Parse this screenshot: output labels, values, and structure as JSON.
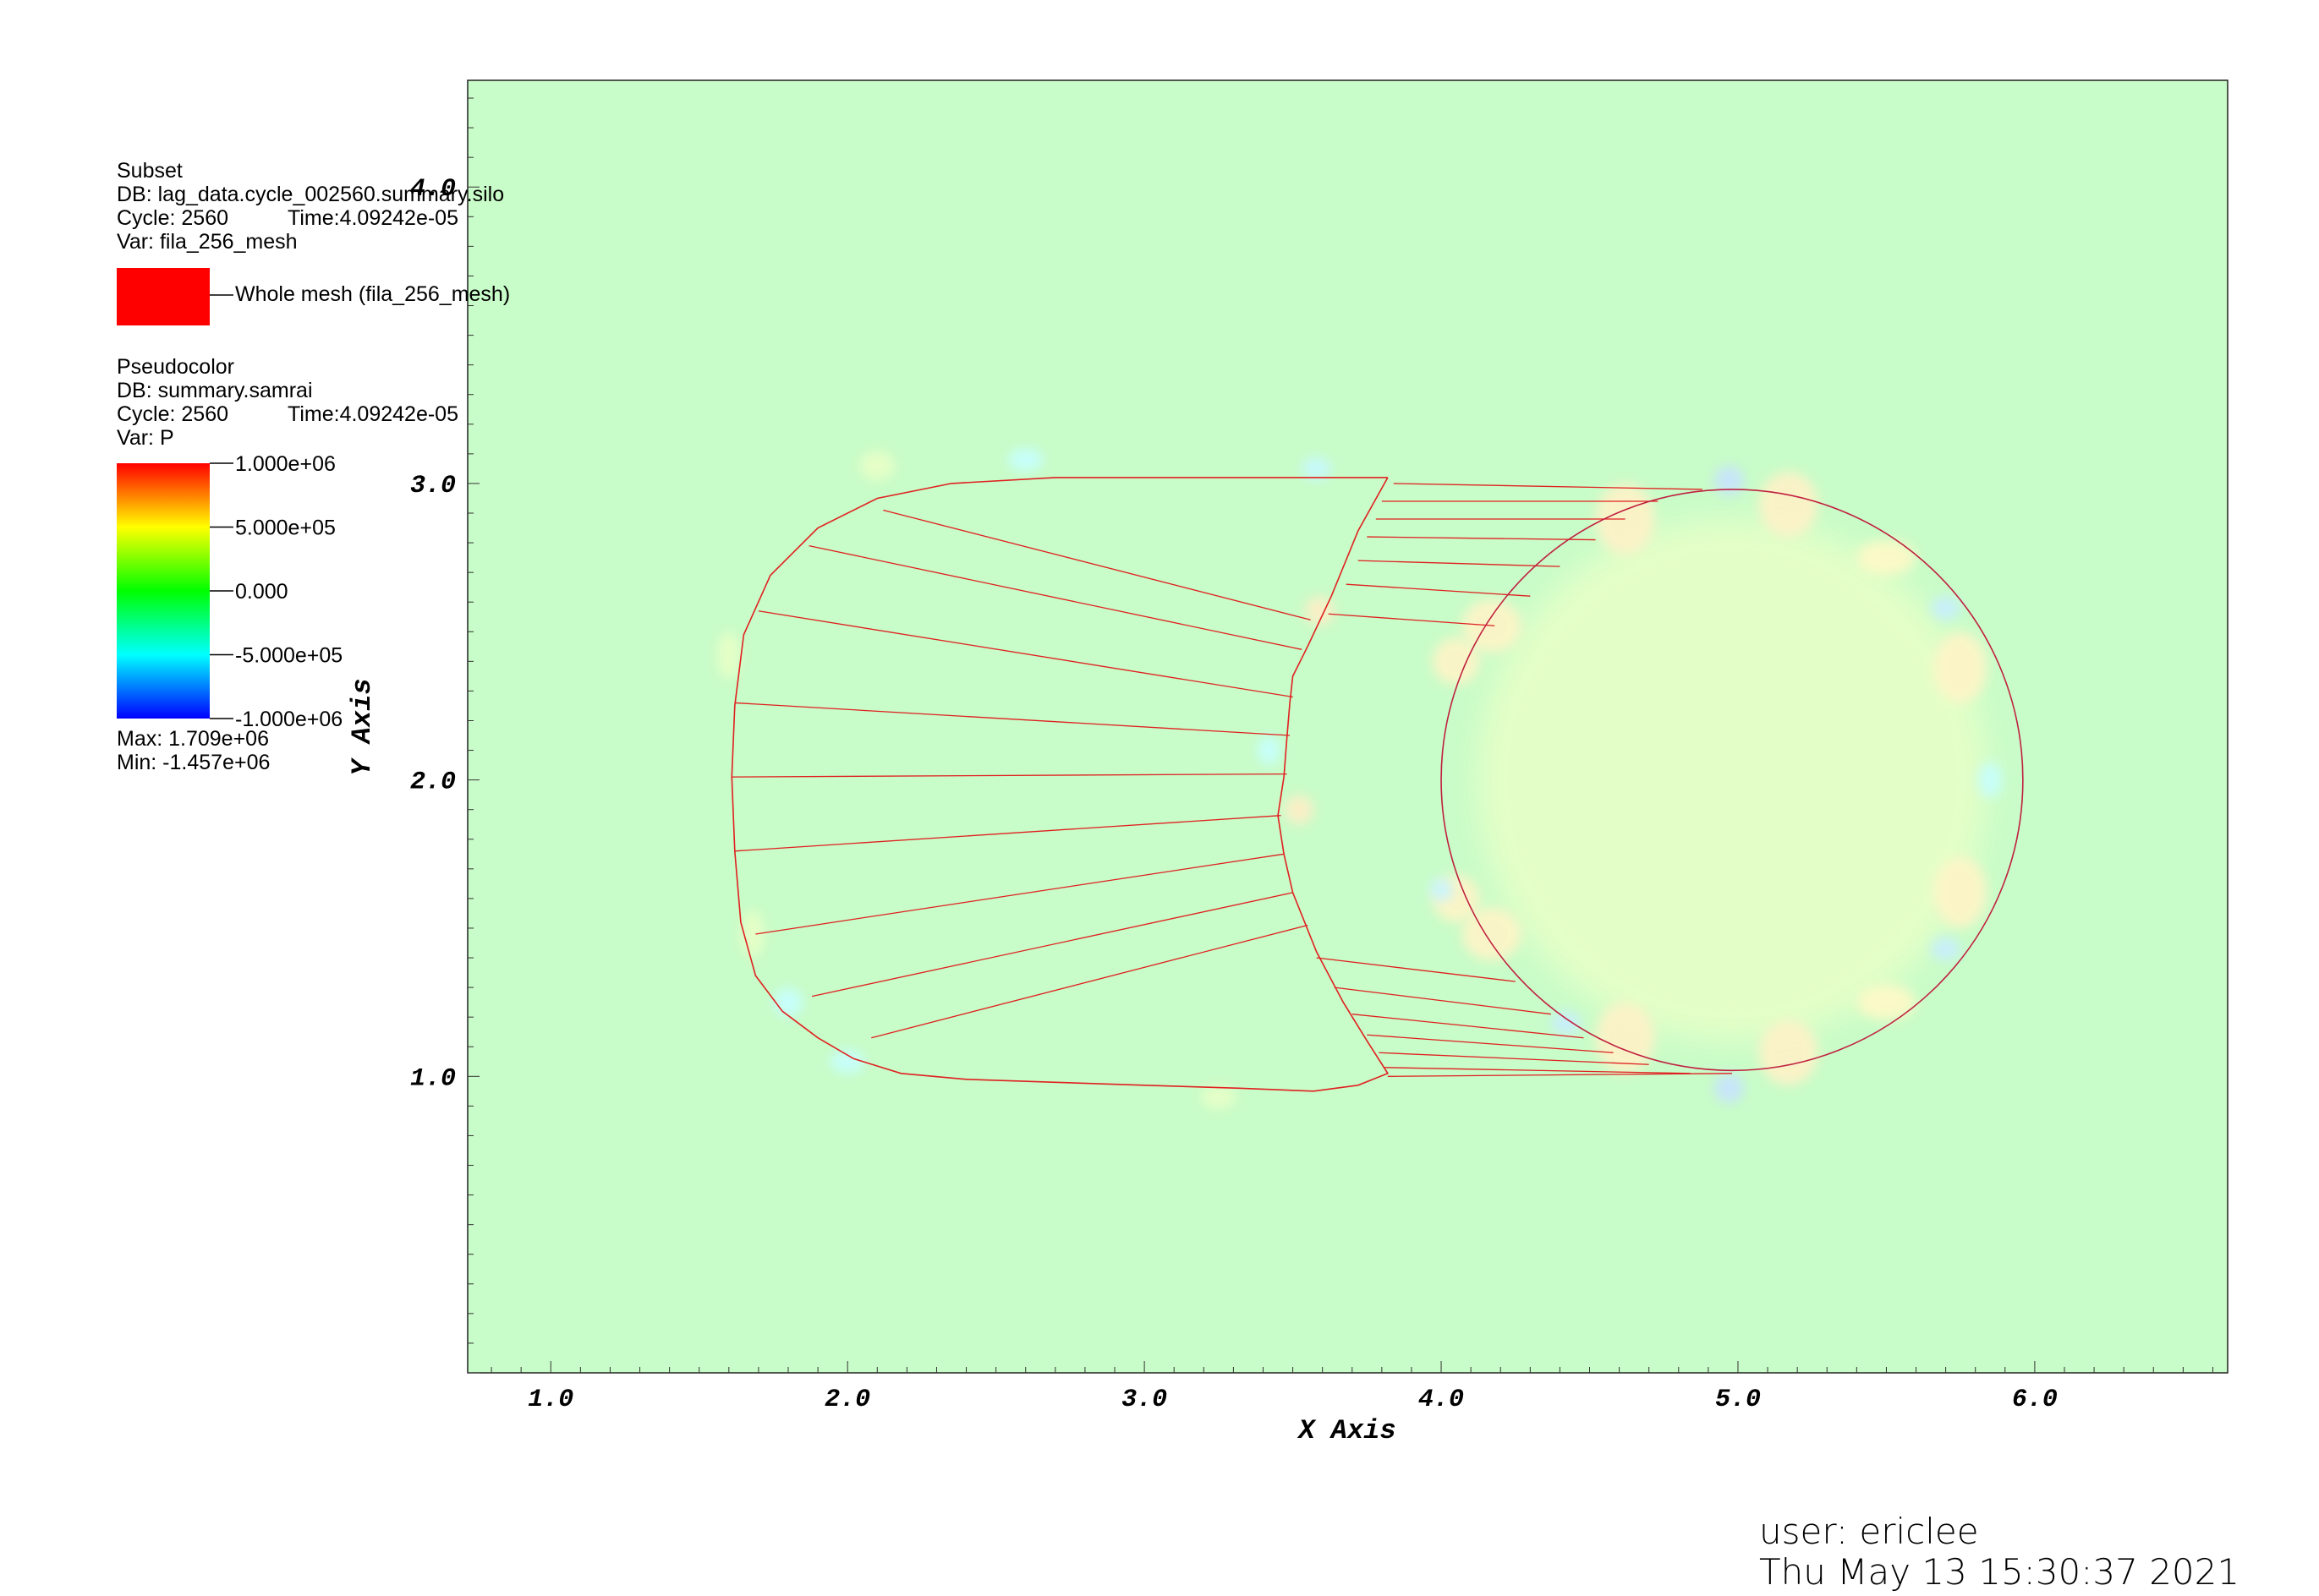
{
  "colors": {
    "background": "#c8fcc8",
    "mesh_line": "#e02020",
    "circle_line": "#c02040",
    "colorbar_top": "#ff0000",
    "colorbar_bottom": "#0000ff",
    "subset_swatch": "#ff0000"
  },
  "legend": {
    "subset": {
      "plot_type": "Subset",
      "db": "DB: lag_data.cycle_002560.summary.silo",
      "cycle": "Cycle: 2560",
      "time": "Time:4.09242e-05",
      "var": "Var: fila_256_mesh",
      "entry": "Whole mesh (fila_256_mesh)"
    },
    "pseudocolor": {
      "plot_type": "Pseudocolor",
      "db": "DB: summary.samrai",
      "cycle": "Cycle: 2560",
      "time": "Time:4.09242e-05",
      "var": "Var: P",
      "ticks": [
        "1.000e+06",
        "5.000e+05",
        "0.000",
        "-5.000e+05",
        "-1.000e+06"
      ],
      "max": "Max:  1.709e+06",
      "min": "Min: -1.457e+06"
    }
  },
  "footer": {
    "user": "user: ericlee",
    "timestamp": "Thu May 13 15:30:37 2021"
  },
  "chart_data": {
    "type": "heatmap",
    "title": "",
    "xlabel": "X Axis",
    "ylabel": "Y Axis",
    "xlim": [
      0.72,
      6.65
    ],
    "ylim": [
      0.0,
      4.36
    ],
    "x_ticks": [
      1.0,
      2.0,
      3.0,
      4.0,
      5.0,
      6.0
    ],
    "x_tick_labels": [
      "1.0",
      "2.0",
      "3.0",
      "4.0",
      "5.0",
      "6.0"
    ],
    "y_ticks": [
      1.0,
      2.0,
      3.0,
      4.0
    ],
    "y_tick_labels": [
      "1.0",
      "2.0",
      "3.0",
      "4.0"
    ],
    "variable": "P",
    "color_range": [
      -1000000,
      1000000
    ],
    "circle": {
      "cx": 4.98,
      "cy": 2.0,
      "r": 0.98
    },
    "outline": [
      [
        3.82,
        3.02
      ],
      [
        3.72,
        2.84
      ],
      [
        3.63,
        2.62
      ],
      [
        3.55,
        2.45
      ],
      [
        3.5,
        2.35
      ],
      [
        3.49,
        2.26
      ],
      [
        3.48,
        2.14
      ],
      [
        3.47,
        2.01
      ],
      [
        3.45,
        1.88
      ],
      [
        3.47,
        1.75
      ],
      [
        3.5,
        1.62
      ],
      [
        3.58,
        1.42
      ],
      [
        3.67,
        1.25
      ],
      [
        3.75,
        1.12
      ],
      [
        3.82,
        1.01
      ],
      [
        3.72,
        0.97
      ],
      [
        3.57,
        0.95
      ],
      [
        3.32,
        0.96
      ],
      [
        3.0,
        0.97
      ],
      [
        2.7,
        0.98
      ],
      [
        2.4,
        0.99
      ],
      [
        2.18,
        1.01
      ],
      [
        2.02,
        1.06
      ],
      [
        1.9,
        1.13
      ],
      [
        1.78,
        1.22
      ],
      [
        1.69,
        1.34
      ],
      [
        1.64,
        1.52
      ],
      [
        1.62,
        1.76
      ],
      [
        1.61,
        2.01
      ],
      [
        1.62,
        2.25
      ],
      [
        1.65,
        2.49
      ],
      [
        1.74,
        2.69
      ],
      [
        1.9,
        2.85
      ],
      [
        2.1,
        2.95
      ],
      [
        2.35,
        3.0
      ],
      [
        2.7,
        3.02
      ],
      [
        3.0,
        3.02
      ],
      [
        3.3,
        3.02
      ],
      [
        3.55,
        3.02
      ],
      [
        3.82,
        3.02
      ]
    ],
    "rays_left": [
      [
        [
          2.12,
          2.91
        ],
        [
          3.56,
          2.54
        ]
      ],
      [
        [
          1.87,
          2.79
        ],
        [
          3.53,
          2.44
        ]
      ],
      [
        [
          1.7,
          2.57
        ],
        [
          3.5,
          2.28
        ]
      ],
      [
        [
          1.62,
          2.26
        ],
        [
          3.49,
          2.15
        ]
      ],
      [
        [
          1.61,
          2.01
        ],
        [
          3.48,
          2.02
        ]
      ],
      [
        [
          1.62,
          1.76
        ],
        [
          3.46,
          1.88
        ]
      ],
      [
        [
          1.69,
          1.48
        ],
        [
          3.47,
          1.75
        ]
      ],
      [
        [
          1.88,
          1.27
        ],
        [
          3.5,
          1.62
        ]
      ],
      [
        [
          2.08,
          1.13
        ],
        [
          3.55,
          1.51
        ]
      ]
    ],
    "rays_right": [
      [
        [
          3.84,
          3.0
        ],
        [
          4.88,
          2.98
        ]
      ],
      [
        [
          3.8,
          2.94
        ],
        [
          4.73,
          2.94
        ]
      ],
      [
        [
          3.78,
          2.88
        ],
        [
          4.62,
          2.88
        ]
      ],
      [
        [
          3.75,
          2.82
        ],
        [
          4.52,
          2.81
        ]
      ],
      [
        [
          3.72,
          2.74
        ],
        [
          4.4,
          2.72
        ]
      ],
      [
        [
          3.68,
          2.66
        ],
        [
          4.3,
          2.62
        ]
      ],
      [
        [
          3.62,
          2.56
        ],
        [
          4.18,
          2.52
        ]
      ],
      [
        [
          3.58,
          1.4
        ],
        [
          4.25,
          1.32
        ]
      ],
      [
        [
          3.64,
          1.3
        ],
        [
          4.37,
          1.21
        ]
      ],
      [
        [
          3.7,
          1.21
        ],
        [
          4.48,
          1.13
        ]
      ],
      [
        [
          3.75,
          1.14
        ],
        [
          4.58,
          1.08
        ]
      ],
      [
        [
          3.79,
          1.08
        ],
        [
          4.7,
          1.04
        ]
      ],
      [
        [
          3.81,
          1.03
        ],
        [
          4.84,
          1.01
        ]
      ],
      [
        [
          3.82,
          1.0
        ],
        [
          4.98,
          1.01
        ]
      ]
    ],
    "pressure_patches": [
      {
        "x": 4.98,
        "y": 2.0,
        "rx": 0.86,
        "ry": 0.88,
        "value": 280000
      },
      {
        "x": 4.62,
        "y": 2.88,
        "rx": 0.1,
        "ry": 0.12,
        "value": 620000
      },
      {
        "x": 5.17,
        "y": 2.93,
        "rx": 0.1,
        "ry": 0.11,
        "value": 620000
      },
      {
        "x": 4.62,
        "y": 1.13,
        "rx": 0.1,
        "ry": 0.12,
        "value": 620000
      },
      {
        "x": 5.17,
        "y": 1.08,
        "rx": 0.1,
        "ry": 0.11,
        "value": 620000
      },
      {
        "x": 4.17,
        "y": 2.52,
        "rx": 0.1,
        "ry": 0.09,
        "value": 600000
      },
      {
        "x": 4.05,
        "y": 2.4,
        "rx": 0.08,
        "ry": 0.08,
        "value": 600000
      },
      {
        "x": 4.17,
        "y": 1.48,
        "rx": 0.1,
        "ry": 0.09,
        "value": 600000
      },
      {
        "x": 4.05,
        "y": 1.6,
        "rx": 0.08,
        "ry": 0.08,
        "value": 600000
      },
      {
        "x": 5.75,
        "y": 2.38,
        "rx": 0.09,
        "ry": 0.12,
        "value": 600000
      },
      {
        "x": 5.75,
        "y": 1.62,
        "rx": 0.09,
        "ry": 0.12,
        "value": 600000
      },
      {
        "x": 5.5,
        "y": 2.75,
        "rx": 0.1,
        "ry": 0.06,
        "value": 550000
      },
      {
        "x": 5.5,
        "y": 1.25,
        "rx": 0.1,
        "ry": 0.06,
        "value": 550000
      },
      {
        "x": 3.59,
        "y": 2.57,
        "rx": 0.05,
        "ry": 0.05,
        "value": 650000
      },
      {
        "x": 3.52,
        "y": 1.9,
        "rx": 0.05,
        "ry": 0.05,
        "value": 650000
      },
      {
        "x": 4.97,
        "y": 3.01,
        "rx": 0.05,
        "ry": 0.05,
        "value": -750000
      },
      {
        "x": 4.97,
        "y": 0.96,
        "rx": 0.05,
        "ry": 0.05,
        "value": -750000
      },
      {
        "x": 5.7,
        "y": 2.58,
        "rx": 0.05,
        "ry": 0.04,
        "value": -650000
      },
      {
        "x": 5.7,
        "y": 1.43,
        "rx": 0.05,
        "ry": 0.04,
        "value": -650000
      },
      {
        "x": 4.42,
        "y": 1.18,
        "rx": 0.05,
        "ry": 0.04,
        "value": -650000
      },
      {
        "x": 4.0,
        "y": 1.63,
        "rx": 0.04,
        "ry": 0.04,
        "value": -600000
      },
      {
        "x": 3.58,
        "y": 3.05,
        "rx": 0.05,
        "ry": 0.04,
        "value": -550000
      },
      {
        "x": 2.6,
        "y": 3.08,
        "rx": 0.06,
        "ry": 0.04,
        "value": -500000
      },
      {
        "x": 2.0,
        "y": 1.05,
        "rx": 0.06,
        "ry": 0.04,
        "value": -500000
      },
      {
        "x": 1.8,
        "y": 1.25,
        "rx": 0.05,
        "ry": 0.05,
        "value": -500000
      },
      {
        "x": 3.42,
        "y": 2.1,
        "rx": 0.04,
        "ry": 0.05,
        "value": -500000
      },
      {
        "x": 5.85,
        "y": 2.0,
        "rx": 0.04,
        "ry": 0.06,
        "value": -500000
      },
      {
        "x": 2.1,
        "y": 3.06,
        "rx": 0.06,
        "ry": 0.05,
        "value": 300000
      },
      {
        "x": 3.25,
        "y": 0.93,
        "rx": 0.06,
        "ry": 0.04,
        "value": 300000
      },
      {
        "x": 1.6,
        "y": 2.42,
        "rx": 0.04,
        "ry": 0.08,
        "value": 300000
      },
      {
        "x": 1.68,
        "y": 1.48,
        "rx": 0.04,
        "ry": 0.08,
        "value": 300000
      }
    ]
  }
}
